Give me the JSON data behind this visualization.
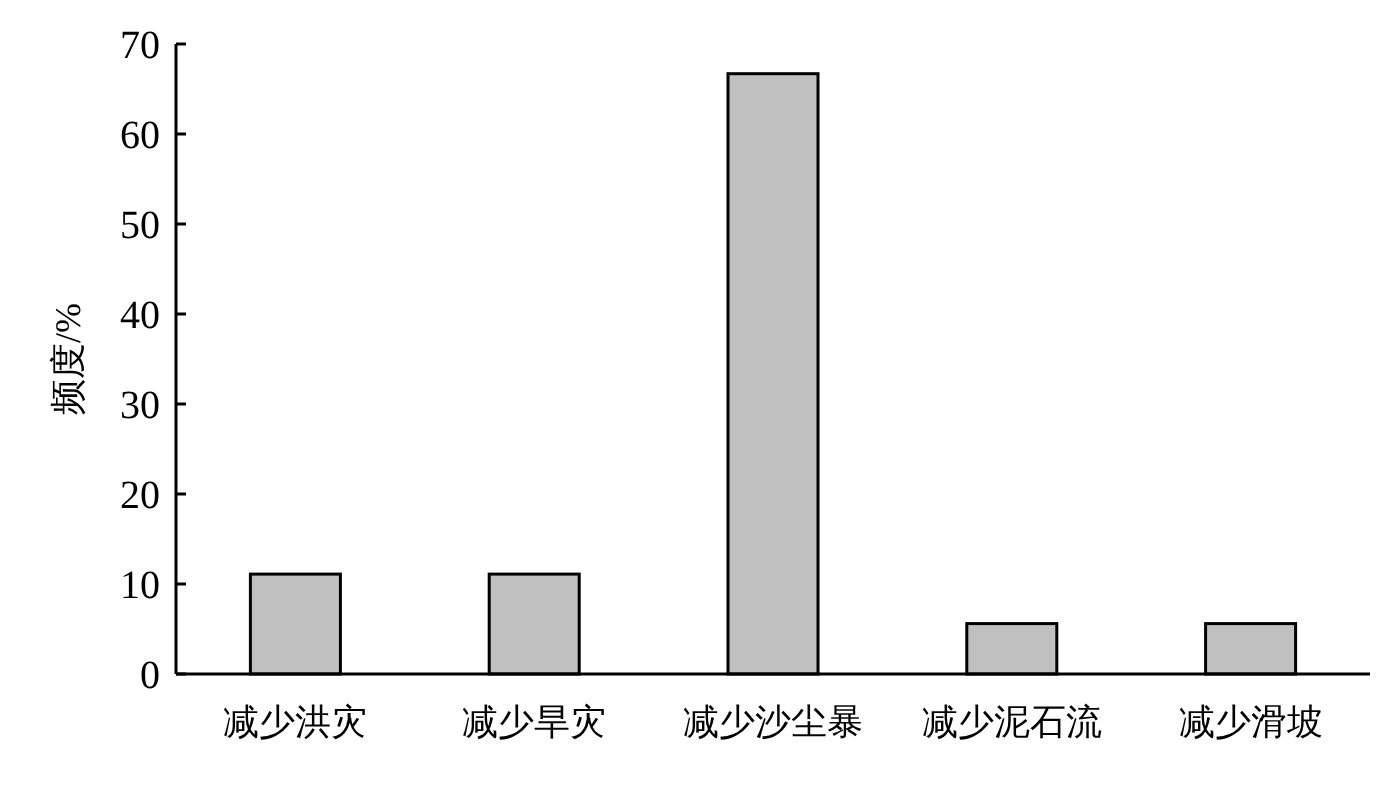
{
  "chart_data": {
    "type": "bar",
    "ylabel": "频度/%",
    "categories": [
      "减少洪灾",
      "减少旱灾",
      "减少沙尘暴",
      "减少泥石流",
      "减少滑坡"
    ],
    "values": [
      11.1,
      11.1,
      66.7,
      5.6,
      5.6
    ],
    "color": "#c0c0c0",
    "ylim": [
      0,
      70
    ],
    "yticks": [
      0,
      10,
      20,
      30,
      40,
      50,
      60,
      70
    ],
    "grid": false
  }
}
